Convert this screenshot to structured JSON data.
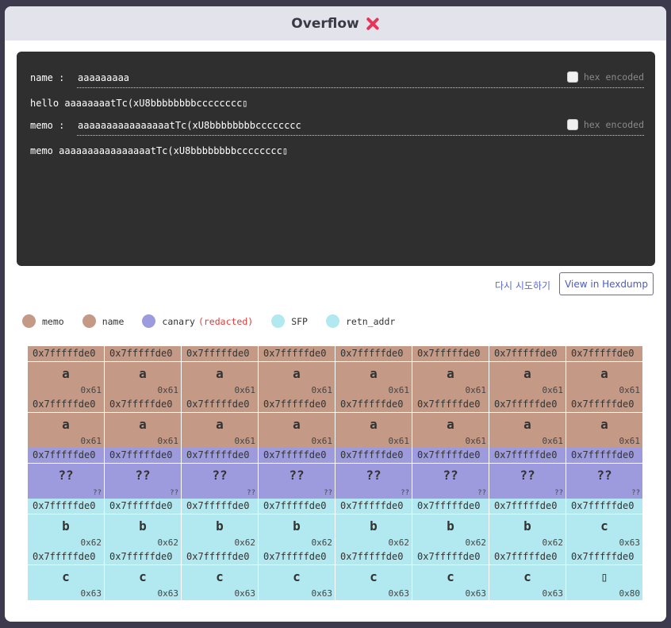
{
  "header": {
    "title": "Overflow"
  },
  "terminal": {
    "name_label": "name : ",
    "name_value": "aaaaaaaaa",
    "hex_label": "hex encoded",
    "hello_line": "hello aaaaaaaatTc(xU8bbbbbbbbcccccccc▯",
    "memo_label": "memo : ",
    "memo_value": "aaaaaaaaaaaaaaaatTc(xU8bbbbbbbbcccccccc",
    "memo_line": "memo aaaaaaaaaaaaaaaatTc(xU8bbbbbbbbcccccccc▯"
  },
  "actions": {
    "retry": "다시 시도하기",
    "hexdump": "View in Hexdump"
  },
  "legend": [
    {
      "label": "memo",
      "color": "#c49a86"
    },
    {
      "label": "name",
      "color": "#c49a86"
    },
    {
      "label": "canary",
      "note": "(redacted)",
      "color": "#9d9ade"
    },
    {
      "label": "SFP",
      "color": "#b2e8ef"
    },
    {
      "label": "retn_addr",
      "color": "#b2e8ef"
    }
  ],
  "stack": {
    "address_prefix": "0x7fffffde0",
    "rows": [
      {
        "color": "#c49a86",
        "cells": [
          [
            "a",
            "0x61"
          ],
          [
            "a",
            "0x61"
          ],
          [
            "a",
            "0x61"
          ],
          [
            "a",
            "0x61"
          ],
          [
            "a",
            "0x61"
          ],
          [
            "a",
            "0x61"
          ],
          [
            "a",
            "0x61"
          ],
          [
            "a",
            "0x61"
          ]
        ]
      },
      {
        "color": "#c49a86",
        "cells": [
          [
            "a",
            "0x61"
          ],
          [
            "a",
            "0x61"
          ],
          [
            "a",
            "0x61"
          ],
          [
            "a",
            "0x61"
          ],
          [
            "a",
            "0x61"
          ],
          [
            "a",
            "0x61"
          ],
          [
            "a",
            "0x61"
          ],
          [
            "a",
            "0x61"
          ]
        ]
      },
      {
        "color": "#9d9ade",
        "cells": [
          [
            "??",
            "??"
          ],
          [
            "??",
            "??"
          ],
          [
            "??",
            "??"
          ],
          [
            "??",
            "??"
          ],
          [
            "??",
            "??"
          ],
          [
            "??",
            "??"
          ],
          [
            "??",
            "??"
          ],
          [
            "??",
            "??"
          ]
        ]
      },
      {
        "color": "#b2e8ef",
        "cells": [
          [
            "b",
            "0x62"
          ],
          [
            "b",
            "0x62"
          ],
          [
            "b",
            "0x62"
          ],
          [
            "b",
            "0x62"
          ],
          [
            "b",
            "0x62"
          ],
          [
            "b",
            "0x62"
          ],
          [
            "b",
            "0x62"
          ],
          [
            "c",
            "0x63"
          ]
        ]
      },
      {
        "color": "#b2e8ef",
        "cells": [
          [
            "c",
            "0x63"
          ],
          [
            "c",
            "0x63"
          ],
          [
            "c",
            "0x63"
          ],
          [
            "c",
            "0x63"
          ],
          [
            "c",
            "0x63"
          ],
          [
            "c",
            "0x63"
          ],
          [
            "c",
            "0x63"
          ],
          [
            "▯",
            "0x80"
          ]
        ]
      }
    ]
  }
}
